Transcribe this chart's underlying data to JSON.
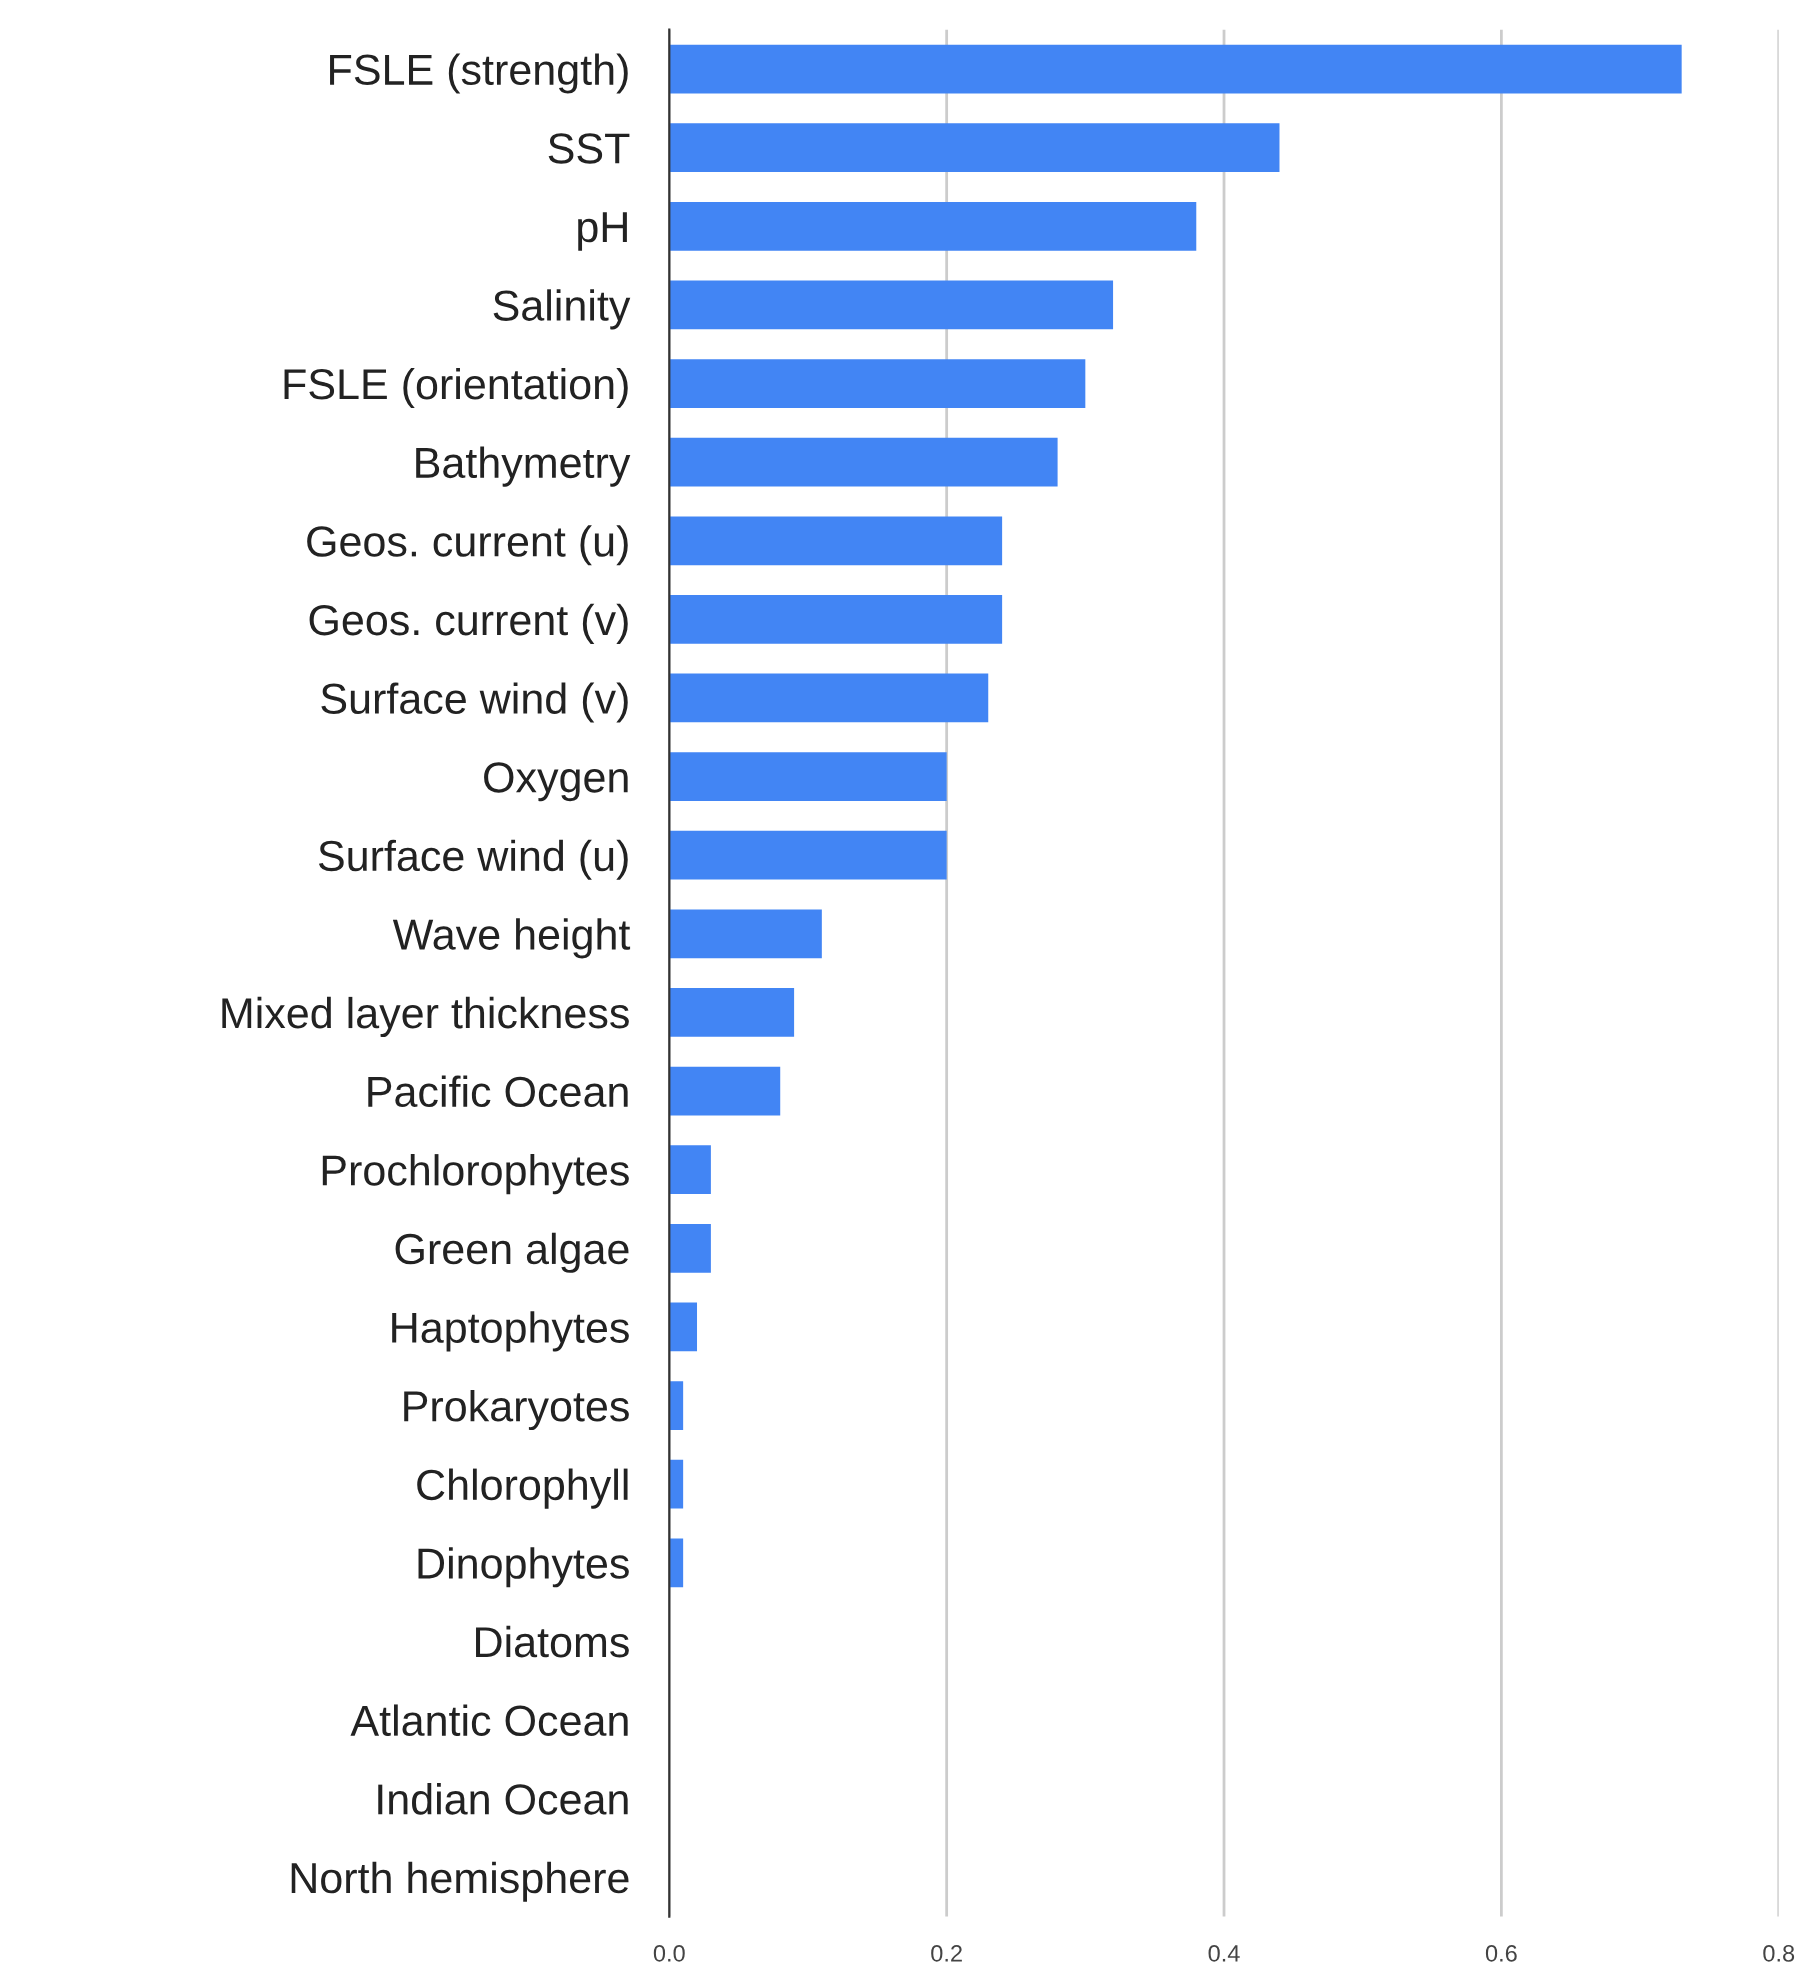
{
  "chart_data": {
    "type": "bar",
    "orientation": "horizontal",
    "categories": [
      "FSLE (strength)",
      "SST",
      "pH",
      "Salinity",
      "FSLE (orientation)",
      "Bathymetry",
      "Geos. current (u)",
      "Geos. current (v)",
      "Surface wind (v)",
      "Oxygen",
      "Surface wind (u)",
      "Wave height",
      "Mixed layer thickness",
      "Pacific Ocean",
      "Prochlorophytes",
      "Green algae",
      "Haptophytes",
      "Prokaryotes",
      "Chlorophyll",
      "Dinophytes",
      "Diatoms",
      "Atlantic Ocean",
      "Indian Ocean",
      "North hemisphere"
    ],
    "values": [
      0.73,
      0.44,
      0.38,
      0.32,
      0.3,
      0.28,
      0.24,
      0.24,
      0.23,
      0.2,
      0.2,
      0.11,
      0.09,
      0.08,
      0.03,
      0.03,
      0.02,
      0.01,
      0.01,
      0.01,
      0,
      0,
      0,
      0
    ],
    "color": "#4285f4",
    "xlim": [
      0,
      0.8
    ],
    "xticks": [
      {
        "value": 0,
        "label": "0.0"
      },
      {
        "value": 0.2,
        "label": "0.2"
      },
      {
        "value": 0.4,
        "label": "0.4"
      },
      {
        "value": 0.6,
        "label": "0.6"
      },
      {
        "value": 0.8,
        "label": "0.8"
      }
    ],
    "grid": "x",
    "legend": false
  }
}
